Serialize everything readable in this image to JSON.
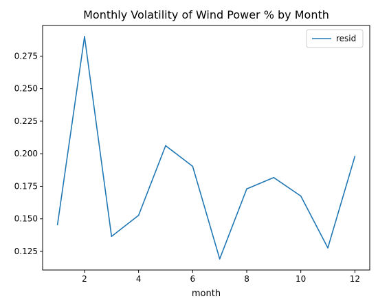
{
  "chart_data": {
    "type": "line",
    "title": "Monthly Volatility of Wind Power % by Month",
    "xlabel": "month",
    "ylabel": "",
    "x": [
      1,
      2,
      3,
      4,
      5,
      6,
      7,
      8,
      9,
      10,
      11,
      12
    ],
    "series": [
      {
        "name": "resid",
        "color": "#1f77b4",
        "values": [
          0.1455,
          0.29,
          0.1365,
          0.1527,
          0.2062,
          0.1903,
          0.1192,
          0.173,
          0.1817,
          0.1675,
          0.1277,
          0.198
        ]
      }
    ],
    "xlim": [
      0.45,
      12.55
    ],
    "ylim": [
      0.1107,
      0.2985
    ],
    "x_ticks": [
      "2",
      "4",
      "6",
      "8",
      "10",
      "12"
    ],
    "y_ticks": [
      "0.125",
      "0.150",
      "0.175",
      "0.200",
      "0.225",
      "0.250",
      "0.275"
    ],
    "grid": false,
    "legend_position": "top-right"
  }
}
